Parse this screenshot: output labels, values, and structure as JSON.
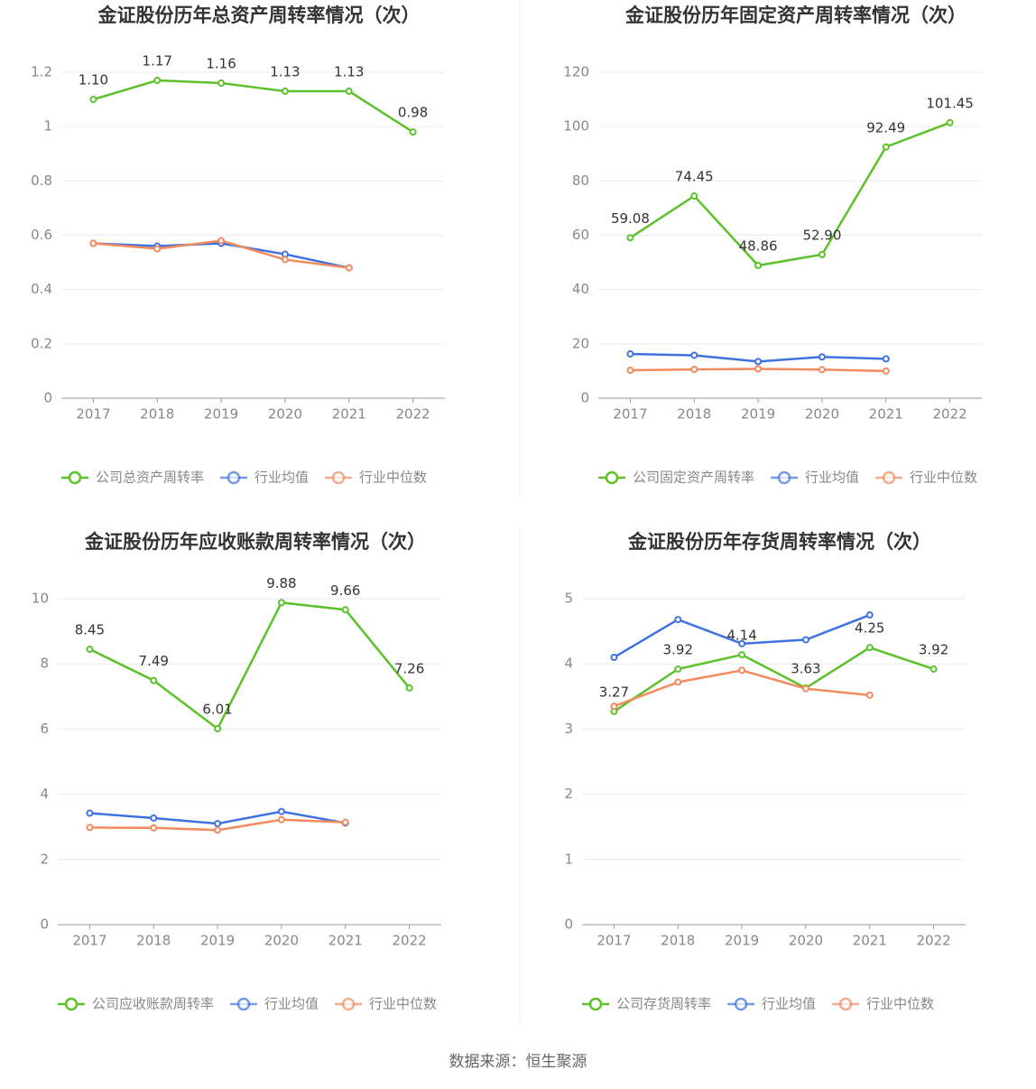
{
  "chart_data": [
    {
      "type": "line",
      "title": "金证股份历年总资产周转率情况（次）",
      "categories": [
        "2017",
        "2018",
        "2019",
        "2020",
        "2021",
        "2022"
      ],
      "ylim": [
        0,
        1.2
      ],
      "yticks": [
        0,
        0.2,
        0.4,
        0.6,
        0.8,
        1,
        1.2
      ],
      "grid": true,
      "series": [
        {
          "name": "公司总资产周转率",
          "color": "#5cc12b",
          "values": [
            1.1,
            1.17,
            1.16,
            1.13,
            1.13,
            0.98
          ],
          "value_labels": [
            "1.10",
            "1.17",
            "1.16",
            "1.13",
            "1.13",
            "0.98"
          ]
        },
        {
          "name": "行业均值",
          "color": "#3f72e0",
          "values": [
            0.57,
            0.56,
            0.57,
            0.53,
            0.48,
            null
          ]
        },
        {
          "name": "行业中位数",
          "color": "#f38b5f",
          "values": [
            0.57,
            0.55,
            0.58,
            0.51,
            0.48,
            null
          ]
        }
      ]
    },
    {
      "type": "line",
      "title": "金证股份历年固定资产周转率情况（次）",
      "categories": [
        "2017",
        "2018",
        "2019",
        "2020",
        "2021",
        "2022"
      ],
      "ylim": [
        0,
        120
      ],
      "yticks": [
        0,
        20,
        40,
        60,
        80,
        100,
        120
      ],
      "grid": true,
      "series": [
        {
          "name": "公司固定资产周转率",
          "color": "#5cc12b",
          "values": [
            59.08,
            74.45,
            48.86,
            52.9,
            92.49,
            101.45
          ],
          "value_labels": [
            "59.08",
            "74.45",
            "48.86",
            "52.90",
            "92.49",
            "101.45"
          ]
        },
        {
          "name": "行业均值",
          "color": "#3f72e0",
          "values": [
            16.3,
            15.8,
            13.5,
            15.2,
            14.5,
            null
          ]
        },
        {
          "name": "行业中位数",
          "color": "#f38b5f",
          "values": [
            10.3,
            10.6,
            10.8,
            10.5,
            10.0,
            null
          ]
        }
      ]
    },
    {
      "type": "line",
      "title": "金证股份历年应收账款周转率情况（次）",
      "categories": [
        "2017",
        "2018",
        "2019",
        "2020",
        "2021",
        "2022"
      ],
      "ylim": [
        0,
        10
      ],
      "yticks": [
        0,
        2,
        4,
        6,
        8,
        10
      ],
      "grid": true,
      "series": [
        {
          "name": "公司应收账款周转率",
          "color": "#5cc12b",
          "values": [
            8.45,
            7.49,
            6.01,
            9.88,
            9.66,
            7.26
          ],
          "value_labels": [
            "8.45",
            "7.49",
            "6.01",
            "9.88",
            "9.66",
            "7.26"
          ]
        },
        {
          "name": "行业均值",
          "color": "#3f72e0",
          "values": [
            3.42,
            3.27,
            3.1,
            3.47,
            3.12,
            null
          ]
        },
        {
          "name": "行业中位数",
          "color": "#f38b5f",
          "values": [
            2.98,
            2.97,
            2.9,
            3.22,
            3.14,
            null
          ]
        }
      ]
    },
    {
      "type": "line",
      "title": "金证股份历年存货周转率情况（次）",
      "categories": [
        "2017",
        "2018",
        "2019",
        "2020",
        "2021",
        "2022"
      ],
      "ylim": [
        0,
        5
      ],
      "yticks": [
        0,
        1,
        2,
        3,
        4,
        5
      ],
      "grid": true,
      "series": [
        {
          "name": "公司存货周转率",
          "color": "#5cc12b",
          "values": [
            3.27,
            3.92,
            4.14,
            3.63,
            4.25,
            3.92
          ],
          "value_labels": [
            "3.27",
            "3.92",
            "4.14",
            "3.63",
            "4.25",
            "3.92"
          ]
        },
        {
          "name": "行业均值",
          "color": "#3f72e0",
          "values": [
            4.1,
            4.68,
            4.31,
            4.37,
            4.75,
            null
          ]
        },
        {
          "name": "行业中位数",
          "color": "#f38b5f",
          "values": [
            3.35,
            3.72,
            3.9,
            3.62,
            3.52,
            null
          ]
        }
      ]
    }
  ],
  "source": "数据来源：恒生聚源"
}
